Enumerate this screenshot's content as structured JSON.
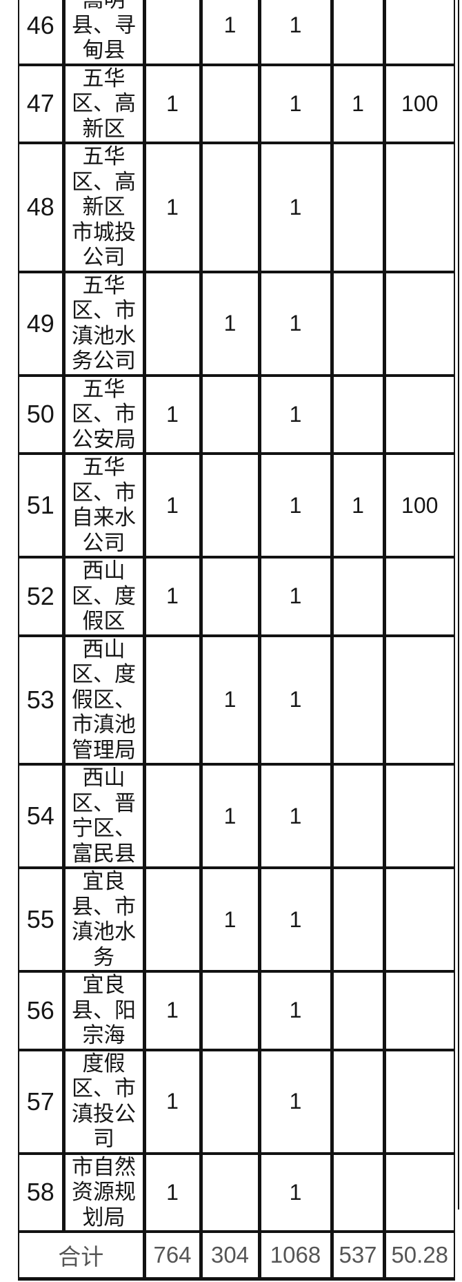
{
  "colors": {
    "text": "#161616",
    "total_text": "#555555",
    "border": "#121212",
    "background": "#ffffff"
  },
  "table": {
    "rows": [
      {
        "num": "46",
        "name": "嵩明\n县、寻\n甸县",
        "values": [
          "",
          "1",
          "1",
          "",
          ""
        ]
      },
      {
        "num": "47",
        "name": "五华\n区、高\n新区",
        "values": [
          "1",
          "",
          "1",
          "1",
          "100"
        ]
      },
      {
        "num": "48",
        "name": "五华\n区、高\n新区\n市城投\n公司",
        "values": [
          "1",
          "",
          "1",
          "",
          ""
        ]
      },
      {
        "num": "49",
        "name": "五华\n区、市\n滇池水\n务公司",
        "values": [
          "",
          "1",
          "1",
          "",
          ""
        ]
      },
      {
        "num": "50",
        "name": "五华\n区、市\n公安局",
        "values": [
          "1",
          "",
          "1",
          "",
          ""
        ]
      },
      {
        "num": "51",
        "name": "五华\n区、市\n自来水\n公司",
        "values": [
          "1",
          "",
          "1",
          "1",
          "100"
        ]
      },
      {
        "num": "52",
        "name": "西山\n区、度\n假区",
        "values": [
          "1",
          "",
          "1",
          "",
          ""
        ]
      },
      {
        "num": "53",
        "name": "西山\n区、度\n假区、\n市滇池\n管理局",
        "values": [
          "",
          "1",
          "1",
          "",
          ""
        ]
      },
      {
        "num": "54",
        "name": "西山\n区、晋\n宁区、\n富民县",
        "values": [
          "",
          "1",
          "1",
          "",
          ""
        ]
      },
      {
        "num": "55",
        "name": "宜良\n县、市\n滇池水\n务",
        "values": [
          "",
          "1",
          "1",
          "",
          ""
        ]
      },
      {
        "num": "56",
        "name": "宜良\n县、阳\n宗海",
        "values": [
          "1",
          "",
          "1",
          "",
          ""
        ]
      },
      {
        "num": "57",
        "name": "度假\n区、市\n滇投公\n司",
        "values": [
          "1",
          "",
          "1",
          "",
          ""
        ]
      },
      {
        "num": "58",
        "name": "市自然\n资源规\n划局",
        "values": [
          "1",
          "",
          "1",
          "",
          ""
        ]
      }
    ],
    "total": {
      "label": "合计",
      "values": [
        "764",
        "304",
        "1068",
        "537",
        "50.28"
      ]
    }
  }
}
